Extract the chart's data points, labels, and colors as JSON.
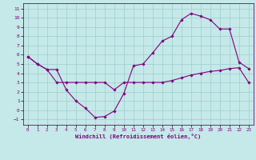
{
  "xlabel": "Windchill (Refroidissement éolien,°C)",
  "background_color": "#c5e8e8",
  "grid_color": "#9ecece",
  "line_color": "#800080",
  "spine_color": "#800080",
  "xlim": [
    -0.5,
    23.5
  ],
  "ylim": [
    -1.6,
    11.6
  ],
  "xticks": [
    0,
    1,
    2,
    3,
    4,
    5,
    6,
    7,
    8,
    9,
    10,
    11,
    12,
    13,
    14,
    15,
    16,
    17,
    18,
    19,
    20,
    21,
    22,
    23
  ],
  "yticks": [
    -1,
    0,
    1,
    2,
    3,
    4,
    5,
    6,
    7,
    8,
    9,
    10,
    11
  ],
  "line1_x": [
    0,
    1,
    2,
    3,
    4,
    5,
    6,
    7,
    8,
    9,
    10,
    11,
    12,
    13,
    14,
    15,
    16,
    17,
    18,
    19,
    20,
    21,
    22,
    23
  ],
  "line1_y": [
    5.8,
    5.0,
    4.4,
    4.4,
    2.2,
    1.0,
    0.2,
    -0.8,
    -0.7,
    -0.1,
    1.8,
    4.8,
    5.0,
    6.2,
    7.5,
    8.0,
    9.8,
    10.5,
    10.2,
    9.8,
    8.8,
    8.8,
    5.2,
    4.5
  ],
  "line2_x": [
    0,
    1,
    2,
    3,
    4,
    5,
    6,
    7,
    8,
    9,
    10,
    11,
    12,
    13,
    14,
    15,
    16,
    17,
    18,
    19,
    20,
    21,
    22,
    23
  ],
  "line2_y": [
    5.8,
    5.0,
    4.4,
    3.0,
    3.0,
    3.0,
    3.0,
    3.0,
    3.0,
    2.2,
    3.0,
    3.0,
    3.0,
    3.0,
    3.0,
    3.2,
    3.5,
    3.8,
    4.0,
    4.2,
    4.3,
    4.5,
    4.6,
    3.0
  ]
}
